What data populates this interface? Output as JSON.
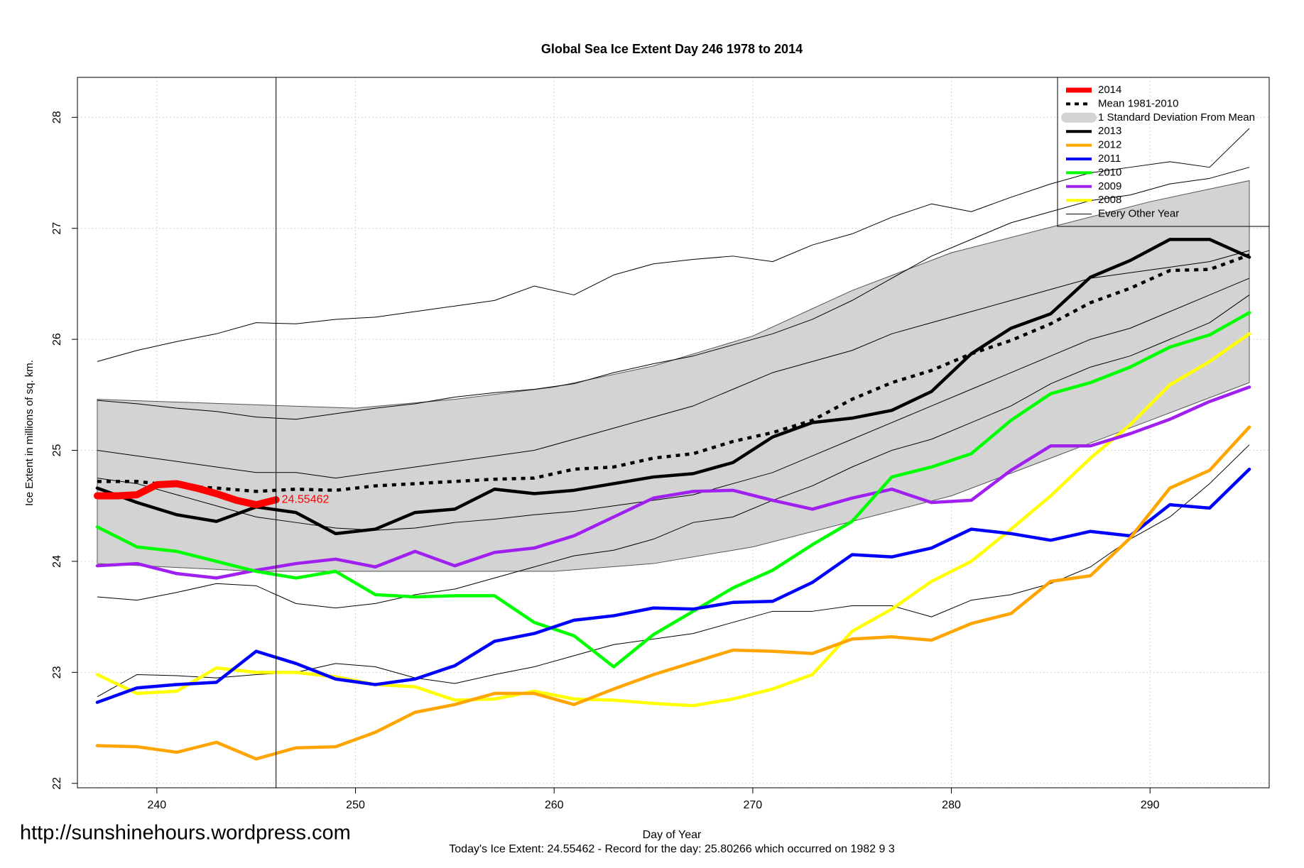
{
  "chart_data": {
    "type": "line",
    "title": "Global Sea Ice Extent Day 246 1978 to 2014",
    "xlabel": "Day of Year",
    "ylabel": "Ice Extent in millions of sq. km.",
    "subtitle": "Today's Ice Extent: 24.55462  - Record for the day: 25.80266 which occurred on 1982 9 3",
    "watermark": "http://sunshinehours.wordpress.com",
    "xlim": [
      236,
      296
    ],
    "ylim": [
      21.96,
      28.36
    ],
    "xticks": [
      240,
      250,
      260,
      270,
      280,
      290
    ],
    "yticks": [
      22,
      23,
      24,
      25,
      26,
      27,
      28
    ],
    "grid": true,
    "legend": "topright",
    "vline": 246,
    "annotation": {
      "text": "24.55462",
      "color": "#ff0000"
    },
    "x": [
      237,
      239,
      241,
      243,
      245,
      247,
      249,
      251,
      253,
      255,
      257,
      259,
      261,
      263,
      265,
      267,
      269,
      271,
      273,
      275,
      277,
      279,
      281,
      283,
      285,
      287,
      289,
      291,
      293,
      295
    ],
    "band": {
      "name": "1 Standard Deviation From Mean",
      "color": "#d3d3d3",
      "x": [
        237,
        245,
        250,
        255,
        260,
        265,
        270,
        275,
        280,
        285,
        290,
        295
      ],
      "lower": [
        23.98,
        23.91,
        23.91,
        23.91,
        23.91,
        23.98,
        24.13,
        24.36,
        24.59,
        24.93,
        25.27,
        25.61
      ],
      "upper": [
        25.46,
        25.41,
        25.38,
        25.46,
        25.57,
        25.76,
        26.03,
        26.44,
        26.78,
        27.01,
        27.24,
        27.43
      ]
    },
    "other_years": {
      "name": "Every Other Year",
      "color": "#000000",
      "lines": [
        [
          25.8,
          25.9,
          25.98,
          26.05,
          26.15,
          26.14,
          26.18,
          26.2,
          26.25,
          26.3,
          26.35,
          26.48,
          26.4,
          26.58,
          26.68,
          26.72,
          26.75,
          26.7,
          26.85,
          26.95,
          27.1,
          27.22,
          27.15,
          27.28,
          27.4,
          27.5,
          27.55,
          27.6,
          27.55,
          27.9
        ],
        [
          25.45,
          25.42,
          25.38,
          25.35,
          25.3,
          25.28,
          25.33,
          25.38,
          25.42,
          25.48,
          25.52,
          25.55,
          25.6,
          25.7,
          25.78,
          25.85,
          25.95,
          26.05,
          26.18,
          26.35,
          26.55,
          26.75,
          26.9,
          27.05,
          27.15,
          27.25,
          27.3,
          27.4,
          27.45,
          27.55
        ],
        [
          23.68,
          23.65,
          23.72,
          23.8,
          23.78,
          23.62,
          23.58,
          23.62,
          23.7,
          23.75,
          23.85,
          23.95,
          24.05,
          24.1,
          24.2,
          24.35,
          24.4,
          24.55,
          24.68,
          24.85,
          25.0,
          25.1,
          25.25,
          25.4,
          25.6,
          25.75,
          25.85,
          26.0,
          26.15,
          26.4
        ],
        [
          22.78,
          22.98,
          22.97,
          22.95,
          22.98,
          23.0,
          23.08,
          23.05,
          22.95,
          22.9,
          22.98,
          23.05,
          23.15,
          23.25,
          23.3,
          23.35,
          23.45,
          23.55,
          23.55,
          23.6,
          23.6,
          23.5,
          23.65,
          23.7,
          23.8,
          23.95,
          24.2,
          24.4,
          24.7,
          25.05
        ],
        [
          25.0,
          24.95,
          24.9,
          24.85,
          24.8,
          24.8,
          24.75,
          24.8,
          24.85,
          24.9,
          24.95,
          25.0,
          25.1,
          25.2,
          25.3,
          25.4,
          25.55,
          25.7,
          25.8,
          25.9,
          26.05,
          26.15,
          26.25,
          26.35,
          26.45,
          26.55,
          26.6,
          26.65,
          26.7,
          26.8
        ],
        [
          24.75,
          24.7,
          24.6,
          24.5,
          24.4,
          24.35,
          24.3,
          24.28,
          24.3,
          24.35,
          24.38,
          24.42,
          24.45,
          24.5,
          24.55,
          24.6,
          24.7,
          24.8,
          24.95,
          25.1,
          25.25,
          25.4,
          25.55,
          25.7,
          25.85,
          26.0,
          26.1,
          26.25,
          26.4,
          26.55
        ]
      ]
    },
    "series": [
      {
        "name": "2014",
        "color": "#ff0000",
        "x": [
          237,
          238,
          239,
          240,
          241,
          242,
          243,
          244,
          245,
          246
        ],
        "values": [
          24.59,
          24.59,
          24.6,
          24.69,
          24.7,
          24.66,
          24.61,
          24.55,
          24.51,
          24.55462
        ]
      },
      {
        "name": "Mean 1981-2010",
        "color": "#000000",
        "style": "dotted",
        "values": [
          24.72,
          24.72,
          24.68,
          24.66,
          24.63,
          24.65,
          24.64,
          24.68,
          24.7,
          24.72,
          24.74,
          24.75,
          24.83,
          24.85,
          24.93,
          24.97,
          25.08,
          25.16,
          25.27,
          25.46,
          25.61,
          25.72,
          25.87,
          25.99,
          26.14,
          26.33,
          26.46,
          26.62,
          26.63,
          26.76
        ]
      },
      {
        "name": "2013",
        "color": "#000000",
        "values": [
          24.66,
          24.53,
          24.42,
          24.36,
          24.49,
          24.44,
          24.25,
          24.29,
          24.44,
          24.47,
          24.65,
          24.61,
          24.64,
          24.7,
          24.76,
          24.79,
          24.89,
          25.12,
          25.25,
          25.29,
          25.36,
          25.53,
          25.87,
          26.1,
          26.23,
          26.56,
          26.71,
          26.9,
          26.9,
          26.74
        ]
      },
      {
        "name": "2012",
        "color": "#ffa500",
        "values": [
          22.34,
          22.33,
          22.28,
          22.37,
          22.22,
          22.32,
          22.33,
          22.46,
          22.64,
          22.71,
          22.81,
          22.81,
          22.71,
          22.85,
          22.98,
          23.09,
          23.2,
          23.19,
          23.17,
          23.3,
          23.32,
          23.29,
          23.44,
          23.53,
          23.82,
          23.87,
          24.21,
          24.66,
          24.82,
          25.21
        ]
      },
      {
        "name": "2011",
        "color": "#0000ff",
        "values": [
          22.73,
          22.86,
          22.89,
          22.91,
          23.19,
          23.08,
          22.94,
          22.89,
          22.94,
          23.06,
          23.28,
          23.35,
          23.47,
          23.51,
          23.58,
          23.57,
          23.63,
          23.64,
          23.81,
          24.06,
          24.04,
          24.12,
          24.29,
          24.25,
          24.19,
          24.27,
          24.23,
          24.51,
          24.48,
          24.83
        ]
      },
      {
        "name": "2010",
        "color": "#00ff00",
        "values": [
          24.31,
          24.13,
          24.09,
          24.0,
          23.91,
          23.85,
          23.91,
          23.7,
          23.68,
          23.69,
          23.69,
          23.45,
          23.33,
          23.05,
          23.34,
          23.55,
          23.76,
          23.92,
          24.15,
          24.36,
          24.76,
          24.85,
          24.97,
          25.27,
          25.51,
          25.61,
          25.75,
          25.93,
          26.04,
          26.24
        ]
      },
      {
        "name": "2009",
        "color": "#a020f0",
        "values": [
          23.96,
          23.98,
          23.89,
          23.85,
          23.92,
          23.98,
          24.02,
          23.95,
          24.09,
          23.96,
          24.08,
          24.12,
          24.23,
          24.4,
          24.57,
          24.63,
          24.64,
          24.55,
          24.47,
          24.57,
          24.65,
          24.53,
          24.55,
          24.82,
          25.04,
          25.04,
          25.15,
          25.28,
          25.44,
          25.57
        ]
      },
      {
        "name": "2008",
        "color": "#ffff00",
        "values": [
          22.98,
          22.81,
          22.83,
          23.04,
          23.0,
          23.0,
          22.96,
          22.89,
          22.87,
          22.75,
          22.76,
          22.83,
          22.76,
          22.75,
          22.72,
          22.7,
          22.76,
          22.85,
          22.98,
          23.37,
          23.57,
          23.82,
          24.0,
          24.29,
          24.59,
          24.93,
          25.23,
          25.59,
          25.8,
          26.05
        ]
      }
    ]
  }
}
